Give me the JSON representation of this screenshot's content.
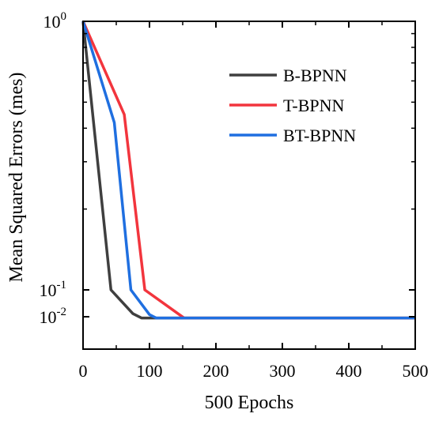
{
  "chart_data": {
    "type": "line",
    "xlabel": "500 Epochs",
    "ylabel": "Mean Squared Errors (mes)",
    "xlim": [
      0,
      500
    ],
    "x_ticks": [
      0,
      100,
      200,
      300,
      400,
      500
    ],
    "x_tick_labels": [
      "0",
      "100",
      "200",
      "300",
      "400",
      "500"
    ],
    "y_tick_labels": [
      {
        "base": "10",
        "exp": "0",
        "value": 1.0
      },
      {
        "base": "10",
        "exp": "-1",
        "value": 0.1
      },
      {
        "base": "10",
        "exp": "-2",
        "value": 0.01
      }
    ],
    "grid": false,
    "legend_position": "top-right",
    "series": [
      {
        "name": "B-BPNN",
        "color": "#3f3f3f",
        "points": [
          [
            0,
            1.0
          ],
          [
            42,
            0.1
          ],
          [
            75,
            0.013
          ],
          [
            88,
            0.009
          ],
          [
            500,
            0.009
          ]
        ]
      },
      {
        "name": "T-BPNN",
        "color": "#f2353d",
        "points": [
          [
            0,
            1.0
          ],
          [
            62,
            0.45
          ],
          [
            93,
            0.1
          ],
          [
            145,
            0.012
          ],
          [
            152,
            0.009
          ],
          [
            500,
            0.009
          ]
        ]
      },
      {
        "name": "BT-BPNN",
        "color": "#1f6fe0",
        "points": [
          [
            0,
            1.0
          ],
          [
            47,
            0.42
          ],
          [
            72,
            0.1
          ],
          [
            100,
            0.012
          ],
          [
            110,
            0.009
          ],
          [
            500,
            0.009
          ]
        ]
      }
    ]
  }
}
